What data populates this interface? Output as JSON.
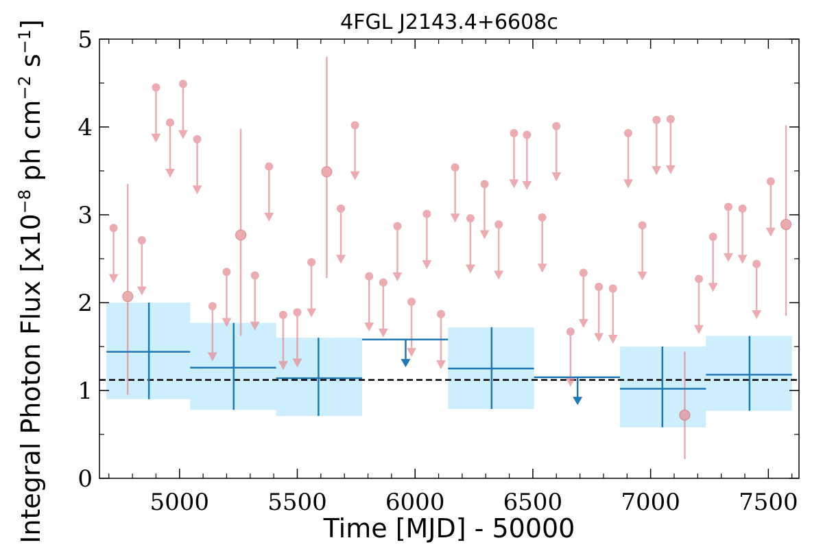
{
  "chart_data": {
    "type": "scatter",
    "title": "4FGL J2143.4+6608c",
    "xlabel": "Time [MJD] - 50000",
    "ylabel": "Integral Photon Flux [x10",
    "ylabel_exp1": "−8",
    "ylabel_mid": " ph cm",
    "ylabel_exp2": "−2",
    "ylabel_mid2": " s",
    "ylabel_exp3": "−1",
    "ylabel_end": "]",
    "xlim": [
      4660,
      7630
    ],
    "ylim": [
      0,
      5
    ],
    "xticks": [
      5000,
      5500,
      6000,
      6500,
      7000,
      7500
    ],
    "yticks": [
      0,
      1,
      2,
      3,
      4,
      5
    ],
    "baseline": 1.12,
    "colors": {
      "detection": "#e38d94",
      "binned": "#1f77b4",
      "band": "#cdeefc",
      "baseline": "#000000"
    },
    "short_bin_detections": [
      {
        "x": 4780,
        "y": 2.07,
        "ylo": 0.95,
        "yhi": 3.35
      },
      {
        "x": 5260,
        "y": 2.77,
        "ylo": 1.62,
        "yhi": 3.98
      },
      {
        "x": 5625,
        "y": 3.49,
        "ylo": 2.28,
        "yhi": 4.8
      },
      {
        "x": 7145,
        "y": 0.72,
        "ylo": 0.22,
        "yhi": 1.44
      },
      {
        "x": 7575,
        "y": 2.89,
        "ylo": 1.85,
        "yhi": 4.02
      }
    ],
    "short_bin_upper_limits": [
      {
        "x": 4720,
        "y": 2.85
      },
      {
        "x": 4840,
        "y": 2.71
      },
      {
        "x": 4900,
        "y": 4.45
      },
      {
        "x": 4960,
        "y": 4.05
      },
      {
        "x": 5015,
        "y": 4.49
      },
      {
        "x": 5075,
        "y": 3.86
      },
      {
        "x": 5140,
        "y": 1.96
      },
      {
        "x": 5200,
        "y": 2.35
      },
      {
        "x": 5320,
        "y": 2.31
      },
      {
        "x": 5380,
        "y": 3.55
      },
      {
        "x": 5440,
        "y": 1.86
      },
      {
        "x": 5500,
        "y": 1.89
      },
      {
        "x": 5560,
        "y": 2.46
      },
      {
        "x": 5685,
        "y": 3.07
      },
      {
        "x": 5745,
        "y": 4.02
      },
      {
        "x": 5805,
        "y": 2.3
      },
      {
        "x": 5865,
        "y": 2.23
      },
      {
        "x": 5925,
        "y": 2.87
      },
      {
        "x": 5985,
        "y": 2.01
      },
      {
        "x": 6050,
        "y": 3.01
      },
      {
        "x": 6110,
        "y": 1.87
      },
      {
        "x": 6170,
        "y": 3.54
      },
      {
        "x": 6235,
        "y": 2.96
      },
      {
        "x": 6295,
        "y": 3.35
      },
      {
        "x": 6355,
        "y": 2.89
      },
      {
        "x": 6420,
        "y": 3.93
      },
      {
        "x": 6475,
        "y": 3.91
      },
      {
        "x": 6540,
        "y": 2.97
      },
      {
        "x": 6600,
        "y": 4.01
      },
      {
        "x": 6660,
        "y": 1.67
      },
      {
        "x": 6715,
        "y": 2.34
      },
      {
        "x": 6780,
        "y": 2.18
      },
      {
        "x": 6840,
        "y": 2.16
      },
      {
        "x": 6905,
        "y": 3.93
      },
      {
        "x": 6965,
        "y": 2.88
      },
      {
        "x": 7025,
        "y": 4.08
      },
      {
        "x": 7085,
        "y": 4.09
      },
      {
        "x": 7205,
        "y": 2.27
      },
      {
        "x": 7265,
        "y": 2.75
      },
      {
        "x": 7330,
        "y": 3.09
      },
      {
        "x": 7390,
        "y": 3.07
      },
      {
        "x": 7450,
        "y": 2.44
      },
      {
        "x": 7510,
        "y": 3.38
      }
    ],
    "short_bin_ul_drop": 0.62,
    "long_bin_detections": [
      {
        "x0": 4690,
        "x1": 5045,
        "xc": 4870,
        "y": 1.44,
        "ylo": 0.9,
        "yhi": 2.0
      },
      {
        "x0": 5045,
        "x1": 5410,
        "xc": 5230,
        "y": 1.26,
        "ylo": 0.78,
        "yhi": 1.77
      },
      {
        "x0": 5410,
        "x1": 5775,
        "xc": 5590,
        "y": 1.14,
        "ylo": 0.71,
        "yhi": 1.6
      },
      {
        "x0": 6140,
        "x1": 6505,
        "xc": 6325,
        "y": 1.25,
        "ylo": 0.79,
        "yhi": 1.72
      },
      {
        "x0": 6870,
        "x1": 7235,
        "xc": 7050,
        "y": 1.02,
        "ylo": 0.58,
        "yhi": 1.5
      },
      {
        "x0": 7235,
        "x1": 7600,
        "xc": 7420,
        "y": 1.18,
        "ylo": 0.77,
        "yhi": 1.62
      }
    ],
    "long_bin_upper_limits": [
      {
        "x0": 5775,
        "x1": 6140,
        "xc": 5960,
        "y": 1.58
      },
      {
        "x0": 6505,
        "x1": 6870,
        "xc": 6690,
        "y": 1.15
      }
    ],
    "long_bin_ul_drop": 0.3
  }
}
